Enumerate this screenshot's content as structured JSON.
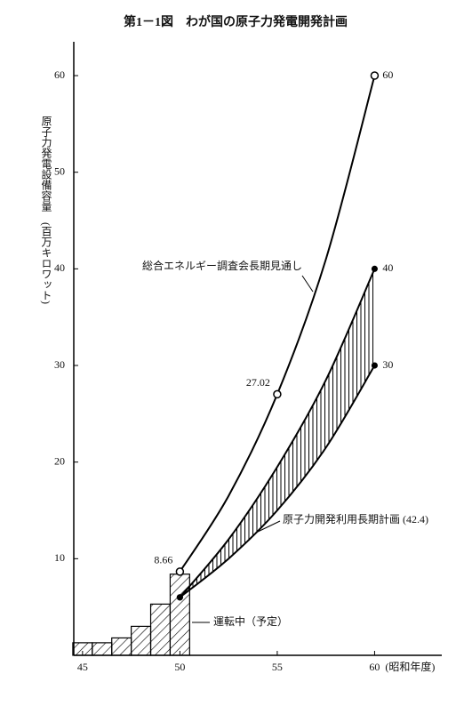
{
  "chart_data": {
    "type": "line",
    "title": "第1－1図　わが国の原子力発電開発計画",
    "ylabel": "原子力発電設備容量　(百万キロワット)",
    "xlabel": "(昭和年度)",
    "xlim": [
      44.55,
      63.45
    ],
    "ylim": [
      0,
      63.5
    ],
    "xticks": [
      45,
      50,
      55,
      60
    ],
    "yticks": [
      10,
      20,
      30,
      40,
      50,
      60
    ],
    "series": [
      {
        "name": "総合エネルギー調査会長期見通し",
        "color": "#000000",
        "marker": "open",
        "x": [
          50,
          52.5,
          55,
          57.5,
          60
        ],
        "values": [
          8.66,
          16.5,
          27.02,
          41,
          60
        ],
        "value_labels": [
          "8.66",
          null,
          "27.02",
          null,
          "60"
        ]
      }
    ],
    "band": {
      "name": "原子力開発利用長期計画 (42.4)",
      "color": "#000000",
      "marker": "filled",
      "upper": {
        "x": [
          50,
          52.5,
          55,
          57.5,
          60
        ],
        "values": [
          6,
          12,
          19.5,
          28.5,
          40
        ],
        "value_labels": [
          null,
          null,
          null,
          null,
          "40"
        ]
      },
      "lower": {
        "x": [
          50,
          52.5,
          55,
          57.5,
          60
        ],
        "values": [
          6,
          10,
          15,
          21.5,
          30
        ],
        "value_labels": [
          null,
          null,
          null,
          null,
          "30"
        ]
      }
    },
    "bars": {
      "name": "運転中（予定）",
      "color": "#000000",
      "x": [
        45,
        46,
        47,
        48,
        49,
        50
      ],
      "values": [
        1.3,
        1.3,
        1.8,
        3.0,
        5.3,
        8.4
      ]
    }
  }
}
